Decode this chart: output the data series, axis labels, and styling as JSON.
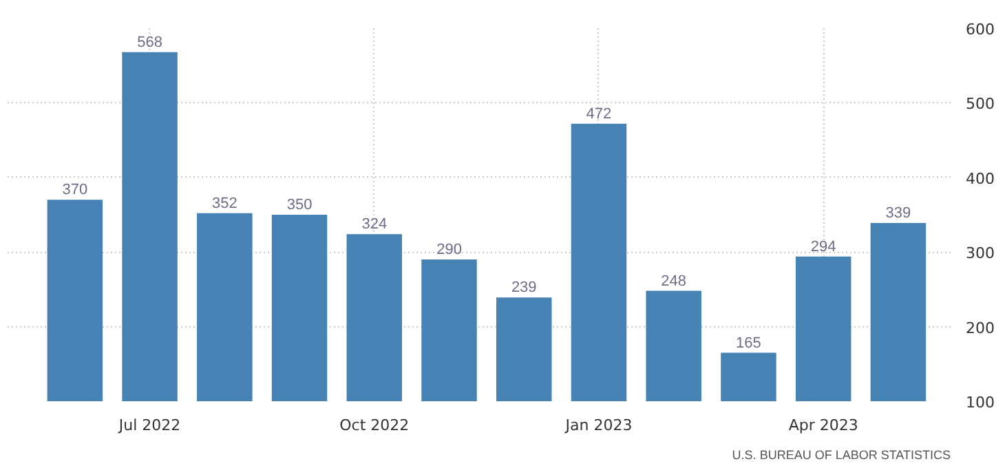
{
  "chart_data": {
    "type": "bar",
    "categories": [
      null,
      "Jul 2022",
      null,
      null,
      "Oct 2022",
      null,
      null,
      "Jan 2023",
      null,
      null,
      "Apr 2023",
      null
    ],
    "values": [
      370,
      568,
      352,
      350,
      324,
      290,
      239,
      472,
      248,
      165,
      294,
      339
    ],
    "color": "#4682b4",
    "ylim": [
      100,
      600
    ],
    "yticks": [
      100,
      200,
      300,
      400,
      500,
      600
    ],
    "grid": true,
    "data_labels": true,
    "annotations": [
      "U.S. BUREAU OF LABOR STATISTICS"
    ]
  }
}
